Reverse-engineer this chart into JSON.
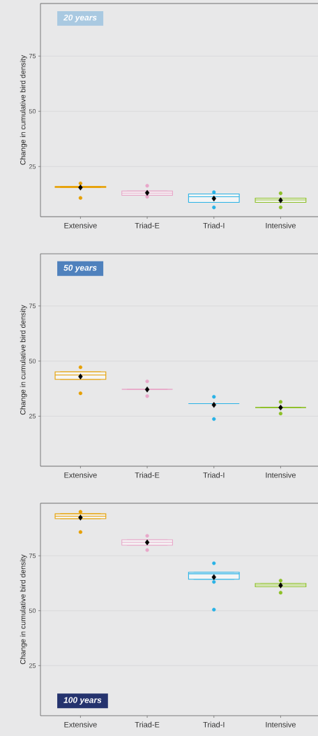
{
  "chart_data": [
    {
      "type": "box",
      "ylabel": "Change in cumulative bird density",
      "annotations": [
        "20 years"
      ],
      "categories": [
        "Extensive",
        "Triad-E",
        "Triad-I",
        "Intensive"
      ],
      "colors": [
        "#e69f00",
        "#e8a7c9",
        "#29b2e6",
        "#8dc027"
      ],
      "ylim": [
        2.3,
        98.8
      ],
      "yticks": [
        25,
        50,
        75
      ],
      "grid": "y",
      "marker": "circle",
      "boxes": [
        {
          "low": 15.5,
          "q1": 15.5,
          "median": 15.8,
          "q3": 16.0,
          "high": 16.0,
          "mean": 15.5,
          "outliers": [
            17.4,
            10.8
          ]
        },
        {
          "low": 12.0,
          "q1": 12.0,
          "median": 13.0,
          "q3": 13.9,
          "high": 13.9,
          "mean": 13.1,
          "outliers": [
            16.3,
            11.3
          ]
        },
        {
          "low": 8.8,
          "q1": 8.8,
          "median": 11.3,
          "q3": 12.6,
          "high": 12.6,
          "mean": 10.5,
          "outliers": [
            13.4,
            6.5
          ]
        },
        {
          "low": 8.8,
          "q1": 8.8,
          "median": 9.9,
          "q3": 10.7,
          "high": 10.7,
          "mean": 9.7,
          "outliers": [
            12.9,
            6.5
          ]
        }
      ]
    },
    {
      "type": "box",
      "ylabel": "Change in cumulative bird density",
      "annotations": [
        "50 years"
      ],
      "categories": [
        "Extensive",
        "Triad-E",
        "Triad-I",
        "Intensive"
      ],
      "colors": [
        "#e69f00",
        "#e8a7c9",
        "#29b2e6",
        "#8dc027"
      ],
      "ylim": [
        2.3,
        98.7
      ],
      "yticks": [
        25,
        50,
        75
      ],
      "grid": "y",
      "marker": "circle",
      "boxes": [
        {
          "low": 41.7,
          "q1": 41.7,
          "median": 43.7,
          "q3": 45.1,
          "high": 45.1,
          "mean": 43.0,
          "outliers": [
            47.2,
            35.4
          ]
        },
        {
          "low": 37.2,
          "q1": 37.2,
          "median": 37.2,
          "q3": 37.2,
          "high": 37.2,
          "mean": 37.1,
          "outliers": [
            40.8,
            34.1
          ]
        },
        {
          "low": 30.7,
          "q1": 30.7,
          "median": 30.7,
          "q3": 30.7,
          "high": 30.7,
          "mean": 30.1,
          "outliers": [
            33.8,
            23.7
          ]
        },
        {
          "low": 28.9,
          "q1": 28.9,
          "median": 28.9,
          "q3": 28.9,
          "high": 28.9,
          "mean": 28.9,
          "outliers": [
            31.5,
            26.2
          ]
        }
      ]
    },
    {
      "type": "box",
      "ylabel": "Change in cumulative bird density",
      "annotations": [
        "100 years"
      ],
      "categories": [
        "Extensive",
        "Triad-E",
        "Triad-I",
        "Intensive"
      ],
      "colors": [
        "#e69f00",
        "#e8a7c9",
        "#29b2e6",
        "#8dc027"
      ],
      "ylim": [
        2.2,
        98.9
      ],
      "yticks": [
        25,
        50,
        75
      ],
      "grid": "y",
      "marker": "circle",
      "boxes": [
        {
          "low": 91.9,
          "q1": 91.9,
          "median": 93.0,
          "q3": 94.1,
          "high": 94.1,
          "mean": 92.4,
          "outliers": [
            95.0,
            85.8
          ]
        },
        {
          "low": 79.8,
          "q1": 79.8,
          "median": 81.1,
          "q3": 82.3,
          "high": 82.3,
          "mean": 81.1,
          "outliers": [
            84.1,
            77.6
          ]
        },
        {
          "low": 64.3,
          "q1": 64.3,
          "median": 66.8,
          "q3": 67.5,
          "high": 67.5,
          "mean": 65.3,
          "outliers": [
            71.6,
            63.1,
            50.5
          ]
        },
        {
          "low": 60.9,
          "q1": 60.9,
          "median": 61.7,
          "q3": 62.4,
          "high": 62.4,
          "mean": 61.5,
          "outliers": [
            63.7,
            58.2
          ]
        }
      ]
    }
  ]
}
